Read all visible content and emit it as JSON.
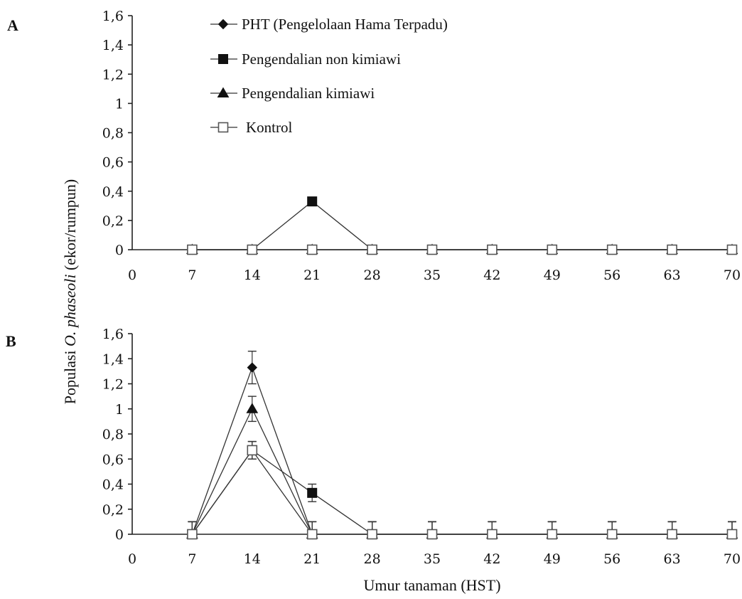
{
  "chart_data": [
    {
      "panel": "A",
      "type": "line",
      "x": [
        7,
        14,
        21,
        28,
        35,
        42,
        49,
        56,
        63,
        70
      ],
      "xticks": [
        "0",
        "7",
        "14",
        "21",
        "28",
        "35",
        "42",
        "49",
        "56",
        "63",
        "70"
      ],
      "yticks": [
        "0",
        "0,2",
        "0,4",
        "0,6",
        "0,8",
        "1",
        "1,2",
        "1,4",
        "1,6"
      ],
      "xlim": [
        0,
        70
      ],
      "ylim": [
        0,
        1.6
      ],
      "series": [
        {
          "name": "PHT (Pengelolaan Hama Terpadu)",
          "marker": "diamond",
          "values": [
            0,
            0,
            0,
            0,
            0,
            0,
            0,
            0,
            0,
            0
          ]
        },
        {
          "name": "Pengendalian non kimiawi",
          "marker": "filled-square",
          "values": [
            0,
            0,
            0.33,
            0,
            0,
            0,
            0,
            0,
            0,
            0
          ]
        },
        {
          "name": "Pengendalian kimiawi",
          "marker": "triangle",
          "values": [
            0,
            0,
            0,
            0,
            0,
            0,
            0,
            0,
            0,
            0
          ]
        },
        {
          "name": "Kontrol",
          "marker": "open-square",
          "values": [
            0,
            0,
            0,
            0,
            0,
            0,
            0,
            0,
            0,
            0
          ]
        }
      ],
      "legend_position": "top-center"
    },
    {
      "panel": "B",
      "type": "line",
      "x": [
        7,
        14,
        21,
        28,
        35,
        42,
        49,
        56,
        63,
        70
      ],
      "xticks": [
        "0",
        "7",
        "14",
        "21",
        "28",
        "35",
        "42",
        "49",
        "56",
        "63",
        "70"
      ],
      "yticks": [
        "0",
        "0,2",
        "0,4",
        "0,6",
        "0,8",
        "1",
        "1,2",
        "1,4",
        "1,6"
      ],
      "xlim": [
        0,
        70
      ],
      "ylim": [
        0,
        1.6
      ],
      "series": [
        {
          "name": "PHT (Pengelolaan Hama Terpadu)",
          "marker": "diamond",
          "values": [
            0,
            1.33,
            0,
            0,
            0,
            0,
            0,
            0,
            0,
            0
          ],
          "errors": [
            0.1,
            0.13,
            0.1,
            0.1,
            0.1,
            0.1,
            0.1,
            0.1,
            0.1,
            0.1
          ]
        },
        {
          "name": "Pengendalian non kimiawi",
          "marker": "filled-square",
          "values": [
            0,
            0.67,
            0.33,
            0,
            0,
            0,
            0,
            0,
            0,
            0
          ],
          "errors": [
            0.1,
            0.07,
            0.07,
            0.1,
            0.1,
            0.1,
            0.1,
            0.1,
            0.1,
            0.1
          ]
        },
        {
          "name": "Pengendalian kimiawi",
          "marker": "triangle",
          "values": [
            0,
            1.0,
            0,
            0,
            0,
            0,
            0,
            0,
            0,
            0
          ],
          "errors": [
            0.1,
            0.1,
            0.1,
            0.1,
            0.1,
            0.1,
            0.1,
            0.1,
            0.1,
            0.1
          ]
        },
        {
          "name": "Kontrol",
          "marker": "open-square",
          "values": [
            0,
            0.67,
            0,
            0,
            0,
            0,
            0,
            0,
            0,
            0
          ],
          "errors": [
            0.1,
            0.07,
            0.1,
            0.1,
            0.1,
            0.1,
            0.1,
            0.1,
            0.1,
            0.1
          ]
        }
      ],
      "xlabel": "Umur tanaman (HST)"
    }
  ],
  "shared_ylabel": {
    "prefix": "Populasi ",
    "italic": "O. phaseoli",
    "suffix": " (ekor/rumpun)"
  }
}
